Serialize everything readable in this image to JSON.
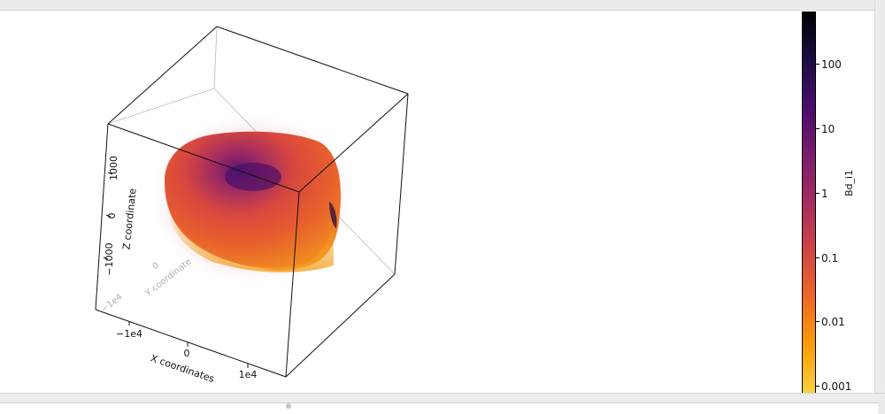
{
  "plot": {
    "z_axis_label": "Z coordinate",
    "y_axis_label": "Y coordinate",
    "x_axis_label": "X coordinates",
    "z_ticks": [
      "1000",
      "0",
      "−1000"
    ],
    "y_ticks": [
      "−1e4",
      "0"
    ],
    "x_ticks": [
      "−1e4",
      "0",
      "1e4"
    ]
  },
  "colorbar": {
    "title": "Bd_i1",
    "colormap": "inferno",
    "scale": "log",
    "tick_labels": [
      "100",
      "10",
      "1",
      "0.1",
      "0.01",
      "0.001"
    ]
  }
}
